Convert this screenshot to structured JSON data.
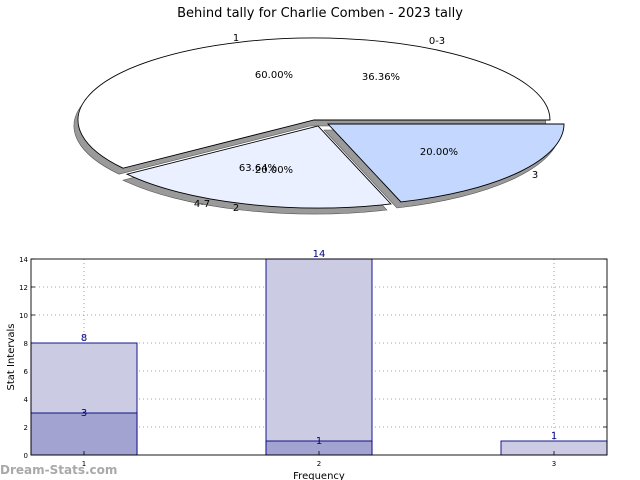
{
  "title": "Behind tally for Charlie Comben - 2023 tally",
  "watermark": "Dream-Stats.com",
  "colors": {
    "pie_outer_white": "#ffffff",
    "pie_outer_light": "#eaf0ff",
    "pie_outer_blue": "#c4d7ff",
    "bar_back": "#cbcbe3",
    "bar_front": "#a3a3d1",
    "bar_edge": "#000080",
    "label_blue": "#000080"
  },
  "chart_data": [
    {
      "type": "pie",
      "title": "Behind tally for Charlie Comben - 2023 tally",
      "rings": [
        {
          "name": "outer",
          "slices": [
            {
              "label": "1",
              "value": 60.0,
              "pct_label": "60.00%"
            },
            {
              "label": "2",
              "value": 20.0,
              "pct_label": "20.00%"
            },
            {
              "label": "3",
              "value": 20.0,
              "pct_label": "20.00%"
            }
          ]
        },
        {
          "name": "inner",
          "slices": [
            {
              "label": "4-7",
              "value": 63.64,
              "pct_label": "63.64%"
            },
            {
              "label": "0-3",
              "value": 36.36,
              "pct_label": "36.36%"
            }
          ]
        }
      ]
    },
    {
      "type": "bar",
      "xlabel": "Frequency",
      "ylabel": "Stat Intervals",
      "ylim": [
        0,
        14
      ],
      "yticks": [
        0,
        2,
        4,
        6,
        8,
        10,
        12,
        14
      ],
      "categories": [
        "1",
        "2",
        "3"
      ],
      "series": [
        {
          "name": "back",
          "values": [
            8,
            14,
            1
          ]
        },
        {
          "name": "front",
          "values": [
            3,
            1,
            0
          ]
        }
      ],
      "grid": true
    }
  ]
}
